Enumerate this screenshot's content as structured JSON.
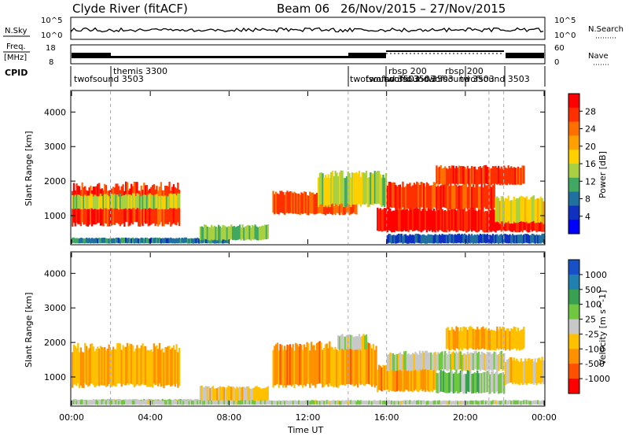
{
  "header": {
    "station": "Clyde River (fitACF)",
    "beam": "Beam 06",
    "date_range": "26/Nov/2015 – 27/Nov/2015"
  },
  "panels": {
    "nsky_label": "N.Sky",
    "nsky_ticks": [
      "10^5",
      "10^0"
    ],
    "nsearch_label": "N.Search",
    "nsearch_ticks": [
      "10^5",
      "10^0"
    ],
    "freq_label": "Freq.",
    "freq_unit": "[MHz]",
    "freq_ticks": [
      "18",
      "8"
    ],
    "nave_label": "Nave",
    "nave_ticks": [
      "60",
      "0"
    ],
    "cpid_label": "CPID"
  },
  "cpid_segments": [
    {
      "label": "twofsound 3503"
    },
    {
      "label": "themis 3300"
    },
    {
      "label": "twofsound 3503"
    },
    {
      "label": "twofsound 3503"
    },
    {
      "label": "twofsound 3503"
    },
    {
      "label": "rbsp 200"
    },
    {
      "label": "rbsp 200"
    },
    {
      "label": "twofsound 3503"
    },
    {
      "label": "twofsound 3503"
    }
  ],
  "power_colorbar": {
    "label": "Power [dB]",
    "ticks": [
      "28",
      "24",
      "20",
      "16",
      "12",
      "8",
      "4"
    ],
    "colors": [
      "#ff0000",
      "#ff3000",
      "#ff7000",
      "#ffa000",
      "#ffd000",
      "#a8d040",
      "#40a860",
      "#2070a0",
      "#1030c0",
      "#0000ff"
    ]
  },
  "velocity_colorbar": {
    "label": "Velocity [m s^-1]",
    "ticks": [
      "1000",
      "500",
      "100",
      "25",
      "-25",
      "-100",
      "-500",
      "-1000"
    ],
    "colors": [
      "#1850c8",
      "#2080b0",
      "#38a050",
      "#70c840",
      "#c8c8c8",
      "#ffc000",
      "#ff9000",
      "#ff5000",
      "#ff0000"
    ]
  },
  "chart_data": [
    {
      "type": "heatmap",
      "title": "Clyde River (fitACF) Beam 06 26/Nov/2015 – 27/Nov/2015",
      "xlabel": "Time UT",
      "ylabel": "Slant Range [km]",
      "x_ticks": [
        "00:00",
        "04:00",
        "08:00",
        "12:00",
        "16:00",
        "20:00",
        "00:00"
      ],
      "y_ticks": [
        "1000",
        "2000",
        "3000",
        "4000"
      ],
      "xlim_hours": [
        0,
        24
      ],
      "ylim_km": [
        180,
        4600
      ],
      "colorbar": "Power [dB]",
      "color_range": [
        0,
        30
      ],
      "echo_regions": [
        {
          "t0": 0.0,
          "t1": 5.5,
          "r0": 750,
          "r1": 1850,
          "value": 26
        },
        {
          "t0": 0.0,
          "t1": 5.5,
          "r0": 1200,
          "r1": 1600,
          "value": 14
        },
        {
          "t0": 0.0,
          "t1": 8.0,
          "r0": 200,
          "r1": 350,
          "value": 8
        },
        {
          "t0": 6.5,
          "t1": 10.0,
          "r0": 300,
          "r1": 700,
          "value": 12
        },
        {
          "t0": 10.2,
          "t1": 14.5,
          "r0": 1050,
          "r1": 1650,
          "value": 24
        },
        {
          "t0": 12.5,
          "t1": 16.0,
          "r0": 1300,
          "r1": 2200,
          "value": 14
        },
        {
          "t0": 15.5,
          "t1": 24.0,
          "r0": 550,
          "r1": 1200,
          "value": 28
        },
        {
          "t0": 16.0,
          "t1": 21.5,
          "r0": 1200,
          "r1": 1900,
          "value": 25
        },
        {
          "t0": 18.5,
          "t1": 23.0,
          "r0": 1900,
          "r1": 2400,
          "value": 25
        },
        {
          "t0": 21.5,
          "t1": 24.0,
          "r0": 800,
          "r1": 1500,
          "value": 16
        },
        {
          "t0": 16.0,
          "t1": 24.0,
          "r0": 200,
          "r1": 450,
          "value": 6
        }
      ]
    },
    {
      "type": "heatmap",
      "title": "",
      "xlabel": "Time UT",
      "ylabel": "Slant Range [km]",
      "x_ticks": [
        "00:00",
        "04:00",
        "08:00",
        "12:00",
        "16:00",
        "20:00",
        "00:00"
      ],
      "y_ticks": [
        "1000",
        "2000",
        "3000",
        "4000"
      ],
      "xlim_hours": [
        0,
        24
      ],
      "ylim_km": [
        180,
        4600
      ],
      "colorbar": "Velocity [m s^-1]",
      "color_range": [
        -1000,
        1000
      ],
      "echo_regions": [
        {
          "t0": 0.0,
          "t1": 5.5,
          "r0": 750,
          "r1": 1850,
          "value": -300
        },
        {
          "t0": 0.0,
          "t1": 8.0,
          "r0": 200,
          "r1": 350,
          "value": 60
        },
        {
          "t0": 6.5,
          "t1": 10.0,
          "r0": 300,
          "r1": 700,
          "value": -200
        },
        {
          "t0": 10.2,
          "t1": 15.5,
          "r0": 750,
          "r1": 1900,
          "value": -400
        },
        {
          "t0": 13.5,
          "t1": 15.0,
          "r0": 1800,
          "r1": 2200,
          "value": 0
        },
        {
          "t0": 15.5,
          "t1": 18.5,
          "r0": 600,
          "r1": 1300,
          "value": -400
        },
        {
          "t0": 18.5,
          "t1": 22.0,
          "r0": 550,
          "r1": 1150,
          "value": 200
        },
        {
          "t0": 16.0,
          "t1": 22.0,
          "r0": 1200,
          "r1": 1700,
          "value": 0
        },
        {
          "t0": 19.0,
          "t1": 23.0,
          "r0": 1800,
          "r1": 2400,
          "value": -300
        },
        {
          "t0": 22.0,
          "t1": 24.0,
          "r0": 800,
          "r1": 1500,
          "value": -200
        },
        {
          "t0": 0.0,
          "t1": 24.0,
          "r0": 200,
          "r1": 320,
          "value": 60
        }
      ]
    }
  ]
}
